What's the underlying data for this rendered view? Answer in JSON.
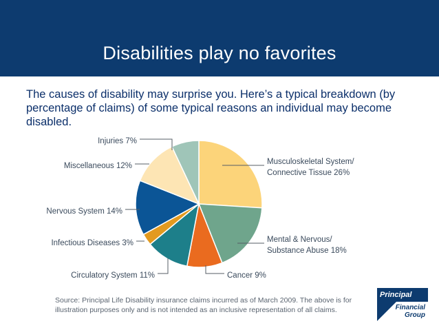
{
  "slide": {
    "title": "Disabilities play no favorites",
    "intro": "The causes of disability may surprise you. Here’s a typical breakdown (by percentage of claims) of some typical reasons an individual may become disabled.",
    "source": "Source: Principal Life Disability insurance claims incurred as of March 2009. The above is for illustration purposes only and is not intended as an inclusive representation of all claims."
  },
  "logo": {
    "line1": "Principal",
    "line2": "Financial",
    "line3": "Group"
  },
  "colors": {
    "banner": "#0d3b6f",
    "intro_text": "#0b2f6a"
  },
  "chart_data": {
    "type": "pie",
    "title": "",
    "unit": "%",
    "start": "top (12 o'clock), clockwise",
    "slices": [
      {
        "name": "Musculoskeletal System/ Connective Tissue",
        "line1": "Musculoskeletal System/",
        "line2": "Connective Tissue 26%",
        "value": 26,
        "color": "#fcd47a"
      },
      {
        "name": "Mental & Nervous/ Substance Abuse",
        "line1": "Mental & Nervous/",
        "line2": "Substance Abuse 18%",
        "value": 18,
        "color": "#6fa58c"
      },
      {
        "name": "Cancer",
        "line1": "Cancer 9%",
        "line2": "",
        "value": 9,
        "color": "#ea6b1f"
      },
      {
        "name": "Circulatory System",
        "line1": "Circulatory System 11%",
        "line2": "",
        "value": 11,
        "color": "#1d7f8a"
      },
      {
        "name": "Infectious Diseases",
        "line1": "Infectious Diseases 3%",
        "line2": "",
        "value": 3,
        "color": "#e39a1f"
      },
      {
        "name": "Nervous System",
        "line1": "Nervous System 14%",
        "line2": "",
        "value": 14,
        "color": "#0b5596"
      },
      {
        "name": "Miscellaneous",
        "line1": "Miscellaneous 12%",
        "line2": "",
        "value": 12,
        "color": "#fde5b4"
      },
      {
        "name": "Injuries",
        "line1": "Injuries 7%",
        "line2": "",
        "value": 7,
        "color": "#9fc5b8"
      }
    ]
  }
}
